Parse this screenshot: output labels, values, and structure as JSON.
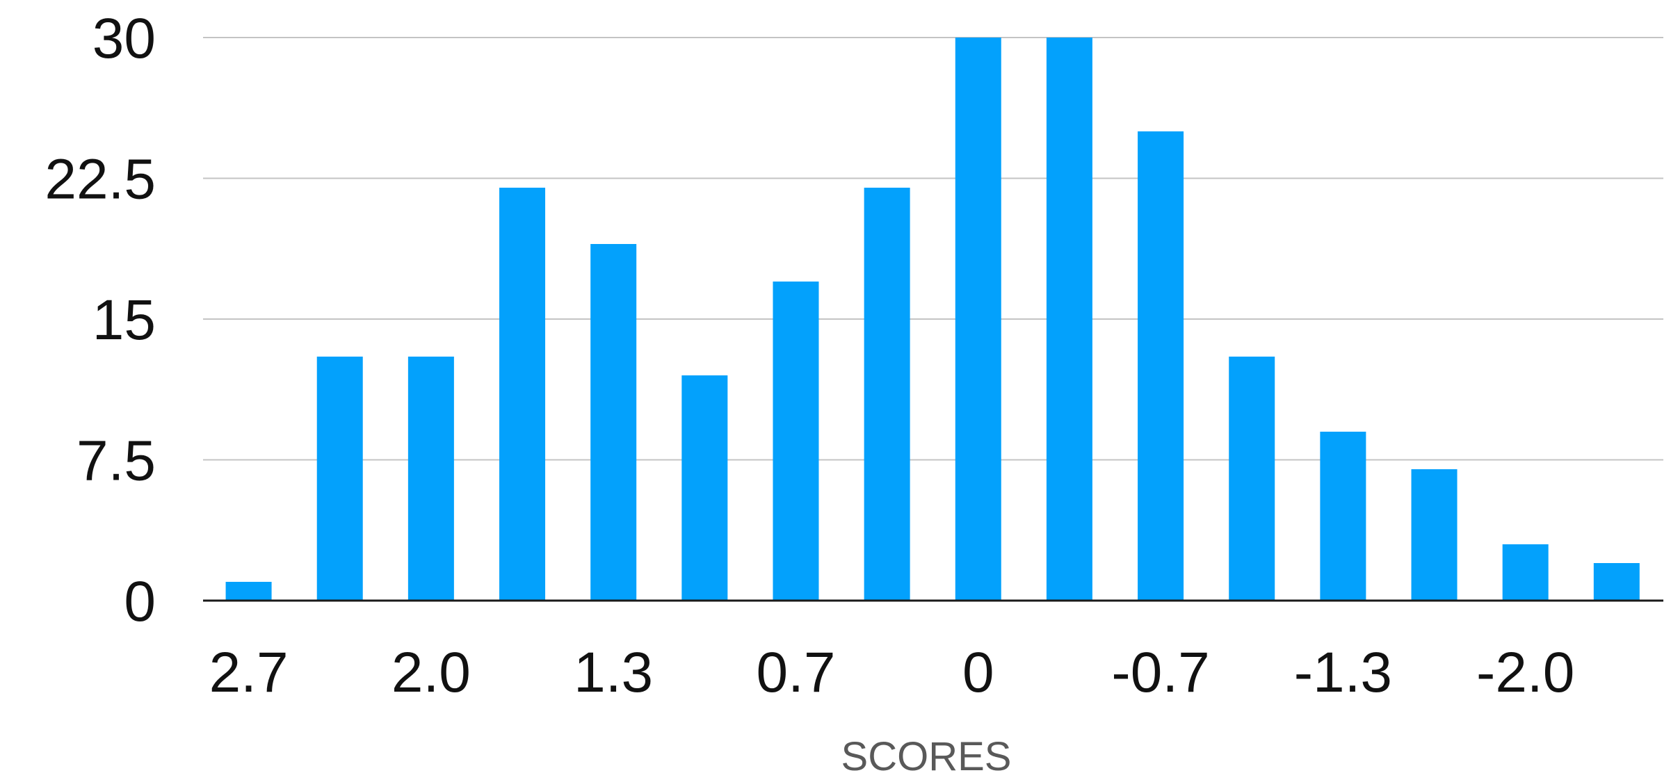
{
  "chart_data": {
    "type": "bar",
    "title": "",
    "xlabel": "SCORES",
    "ylabel": "",
    "ylim": [
      0,
      30
    ],
    "yticks": [
      "0",
      "7.5",
      "15",
      "22.5",
      "30"
    ],
    "grid": true,
    "legend": "none",
    "bar_color": "#03a1fc",
    "categories": [
      "2.7",
      "",
      "2.0",
      "",
      "1.3",
      "",
      "0.7",
      "",
      "0",
      "",
      "-0.7",
      "",
      "-1.3",
      "",
      "-2.0",
      ""
    ],
    "x_tick_labels": [
      "2.7",
      "2.0",
      "1.3",
      "0.7",
      "0",
      "-0.7",
      "-1.3",
      "-2.0"
    ],
    "values": [
      1,
      13,
      13,
      22,
      19,
      12,
      17,
      22,
      30,
      30,
      25,
      13,
      9,
      7,
      3,
      2
    ]
  }
}
